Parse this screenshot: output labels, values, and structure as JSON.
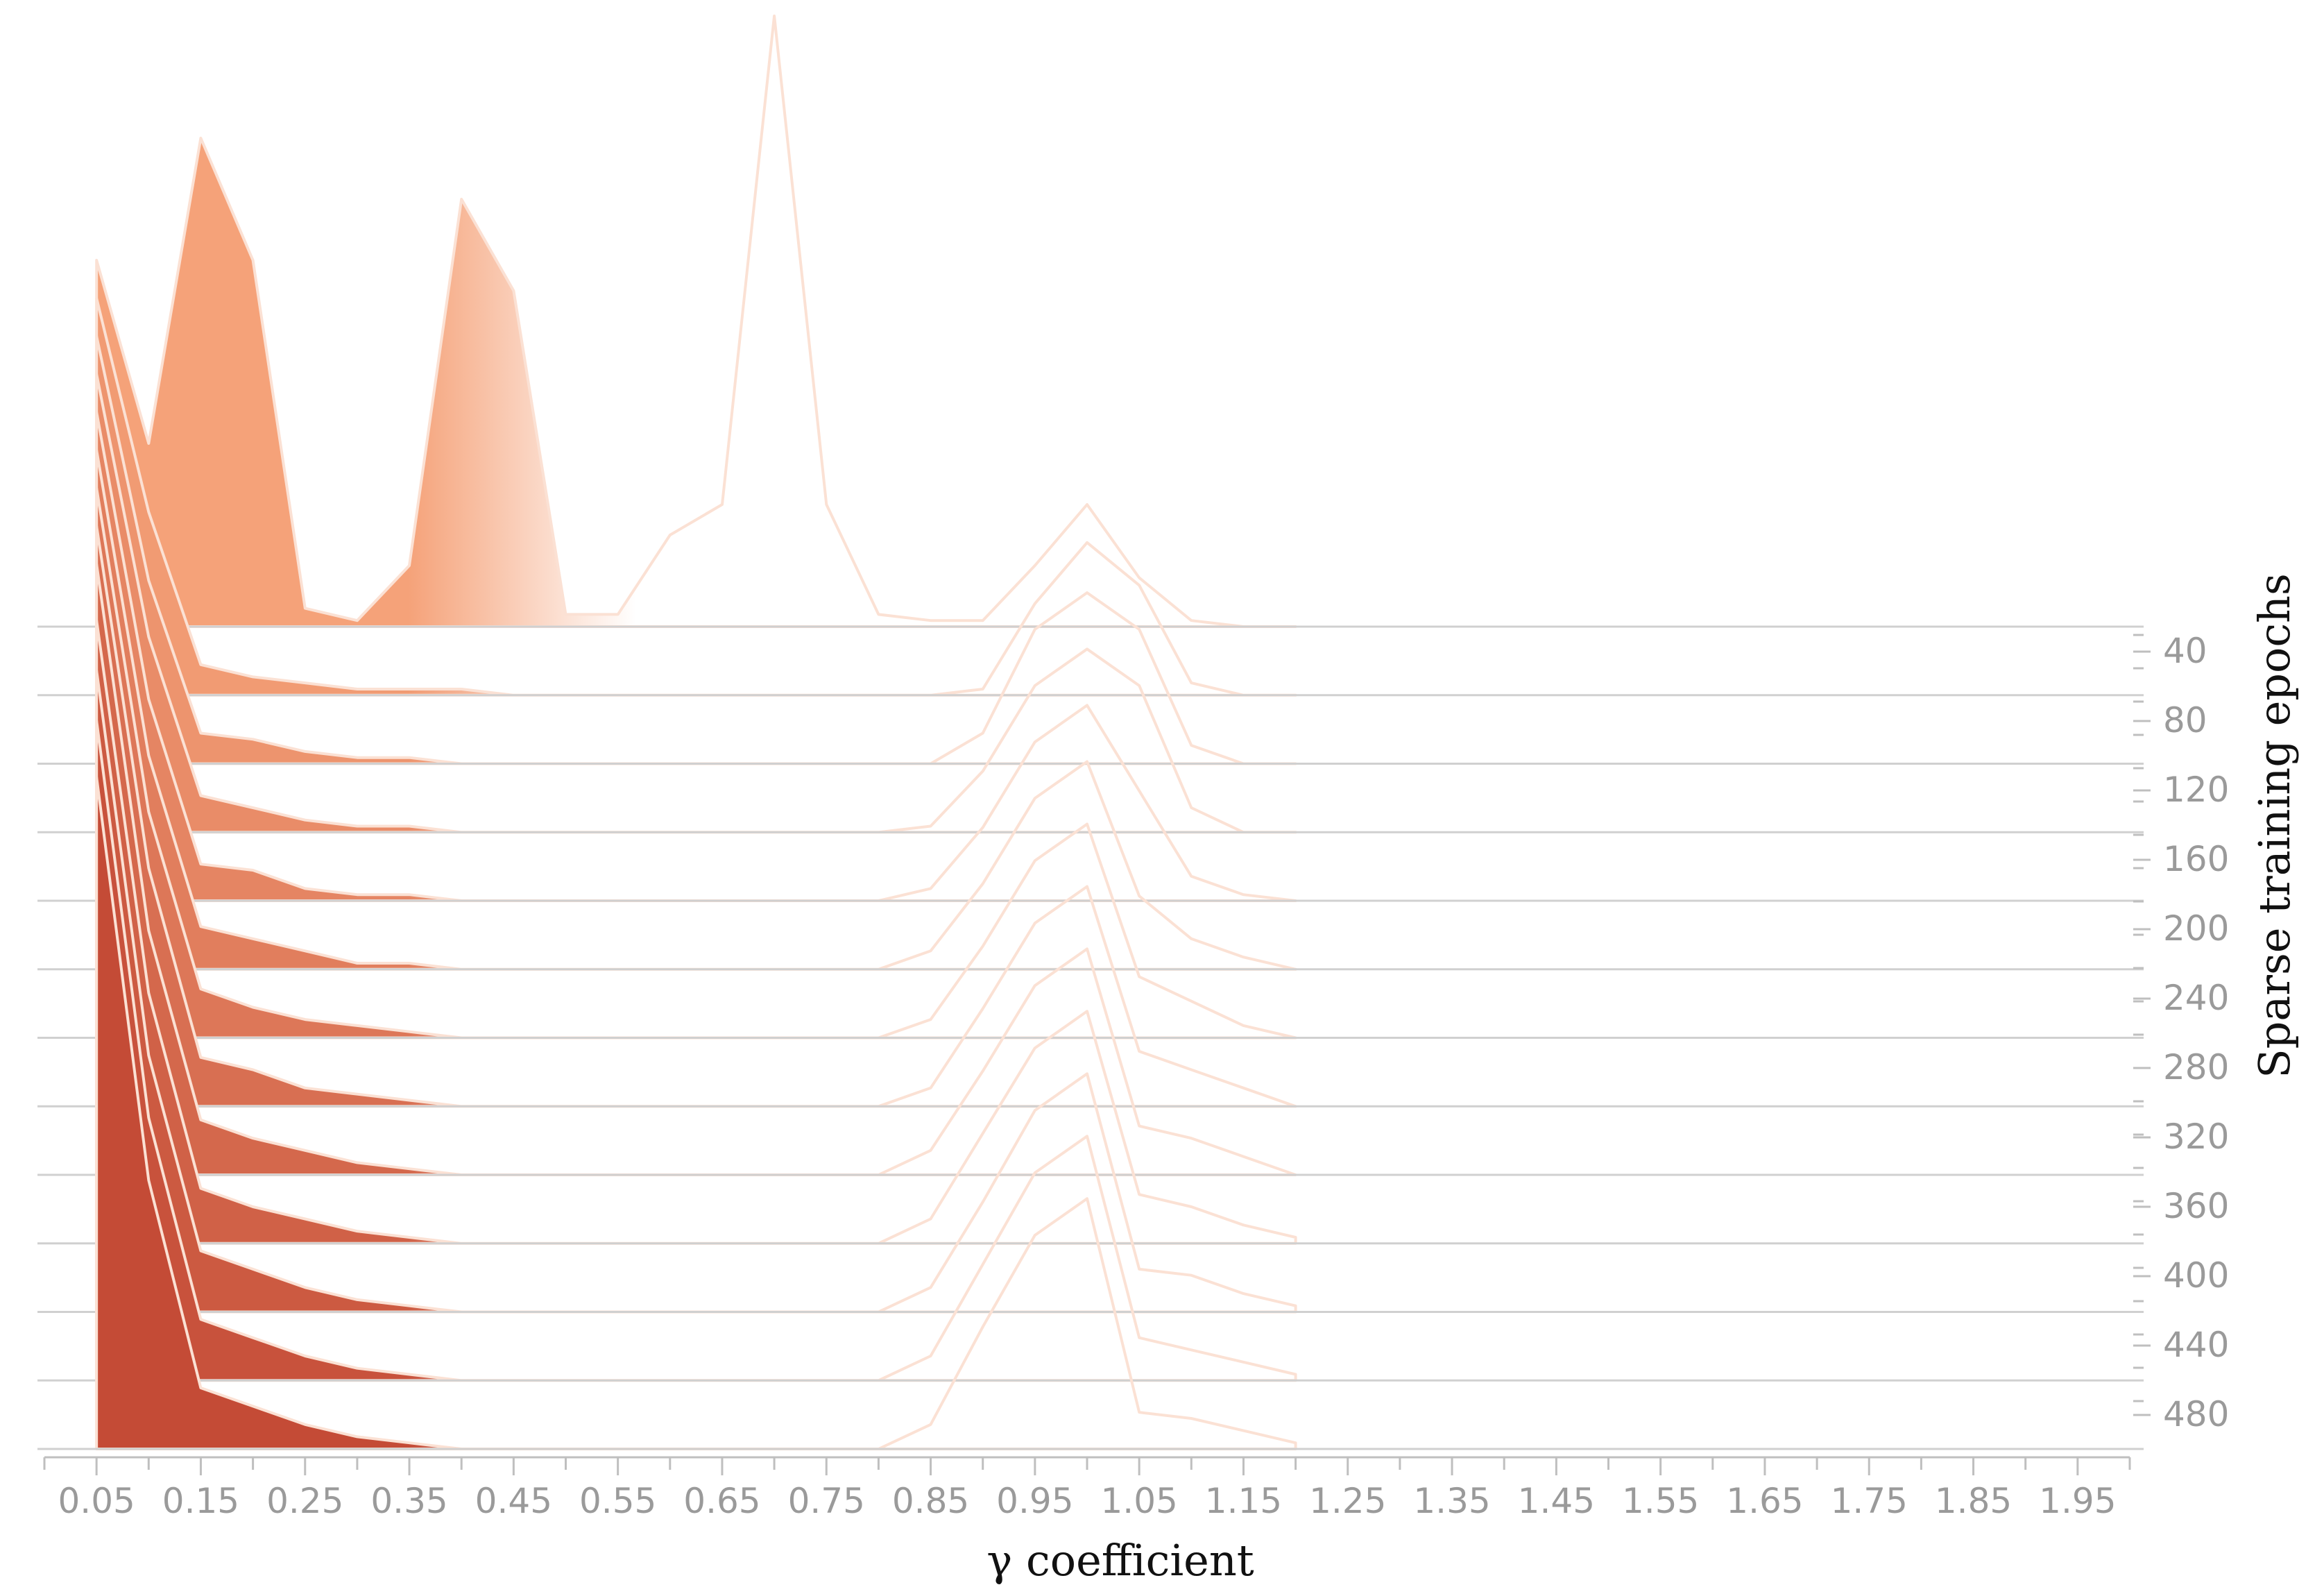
{
  "chart_data": {
    "type": "area",
    "subtype": "ridgeline-histogram",
    "title": "",
    "xlabel": "γ coefficient",
    "ylabel": "Sparse training epochs",
    "xlim": [
      0.0,
      2.0
    ],
    "x_tick_labels": [
      "0.05",
      "0.15",
      "0.25",
      "0.35",
      "0.45",
      "0.55",
      "0.65",
      "0.75",
      "0.85",
      "0.95",
      "1.05",
      "1.15",
      "1.25",
      "1.35",
      "1.45",
      "1.55",
      "1.65",
      "1.75",
      "1.85",
      "1.95"
    ],
    "y_tick_labels": [
      "40",
      "80",
      "120",
      "160",
      "200",
      "240",
      "280",
      "320",
      "360",
      "400",
      "440",
      "480"
    ],
    "x": [
      0.05,
      0.1,
      0.15,
      0.2,
      0.25,
      0.3,
      0.35,
      0.4,
      0.45,
      0.5,
      0.55,
      0.6,
      0.65,
      0.7,
      0.75,
      0.8,
      0.85,
      0.9,
      0.95,
      1.0,
      1.05,
      1.1,
      1.15,
      1.2
    ],
    "colors": {
      "early": "#f5a279",
      "late": "#c44b36"
    },
    "series": [
      {
        "epoch": 10,
        "values": [
          0.6,
          0.3,
          0.8,
          0.6,
          0.03,
          0.01,
          0.1,
          0.7,
          0.55,
          0.02,
          0.02,
          0.15,
          0.2,
          1.0,
          0.2,
          0.02,
          0.01,
          0.01,
          0.1,
          0.2,
          0.08,
          0.01,
          0.0,
          0.0
        ]
      },
      {
        "epoch": 40,
        "values": [
          0.65,
          0.3,
          0.05,
          0.03,
          0.02,
          0.01,
          0.01,
          0.01,
          0.0,
          0.0,
          0.0,
          0.0,
          0.0,
          0.0,
          0.0,
          0.0,
          0.0,
          0.01,
          0.15,
          0.25,
          0.18,
          0.02,
          0.0,
          0.0
        ]
      },
      {
        "epoch": 80,
        "values": [
          0.7,
          0.3,
          0.05,
          0.04,
          0.02,
          0.01,
          0.01,
          0.0,
          0.0,
          0.0,
          0.0,
          0.0,
          0.0,
          0.0,
          0.0,
          0.0,
          0.0,
          0.05,
          0.22,
          0.28,
          0.22,
          0.03,
          0.0,
          0.0
        ]
      },
      {
        "epoch": 120,
        "values": [
          0.75,
          0.32,
          0.06,
          0.04,
          0.02,
          0.01,
          0.01,
          0.0,
          0.0,
          0.0,
          0.0,
          0.0,
          0.0,
          0.0,
          0.0,
          0.0,
          0.01,
          0.1,
          0.24,
          0.3,
          0.24,
          0.04,
          0.0,
          0.0
        ]
      },
      {
        "epoch": 160,
        "values": [
          0.8,
          0.33,
          0.06,
          0.05,
          0.02,
          0.01,
          0.01,
          0.0,
          0.0,
          0.0,
          0.0,
          0.0,
          0.0,
          0.0,
          0.0,
          0.0,
          0.02,
          0.12,
          0.26,
          0.32,
          0.18,
          0.04,
          0.01,
          0.0
        ]
      },
      {
        "epoch": 200,
        "values": [
          0.85,
          0.35,
          0.07,
          0.05,
          0.03,
          0.01,
          0.01,
          0.0,
          0.0,
          0.0,
          0.0,
          0.0,
          0.0,
          0.0,
          0.0,
          0.0,
          0.03,
          0.14,
          0.28,
          0.34,
          0.12,
          0.05,
          0.02,
          0.0
        ]
      },
      {
        "epoch": 240,
        "values": [
          0.9,
          0.37,
          0.08,
          0.05,
          0.03,
          0.02,
          0.01,
          0.0,
          0.0,
          0.0,
          0.0,
          0.0,
          0.0,
          0.0,
          0.0,
          0.0,
          0.03,
          0.15,
          0.29,
          0.35,
          0.1,
          0.06,
          0.02,
          0.0
        ]
      },
      {
        "epoch": 280,
        "values": [
          0.95,
          0.39,
          0.08,
          0.06,
          0.03,
          0.02,
          0.01,
          0.0,
          0.0,
          0.0,
          0.0,
          0.0,
          0.0,
          0.0,
          0.0,
          0.0,
          0.03,
          0.16,
          0.3,
          0.36,
          0.09,
          0.06,
          0.03,
          0.0
        ]
      },
      {
        "epoch": 320,
        "values": [
          1.0,
          0.4,
          0.09,
          0.06,
          0.04,
          0.02,
          0.01,
          0.0,
          0.0,
          0.0,
          0.0,
          0.0,
          0.0,
          0.0,
          0.0,
          0.0,
          0.04,
          0.17,
          0.31,
          0.37,
          0.08,
          0.06,
          0.03,
          0.0
        ]
      },
      {
        "epoch": 360,
        "values": [
          1.02,
          0.41,
          0.09,
          0.06,
          0.04,
          0.02,
          0.01,
          0.0,
          0.0,
          0.0,
          0.0,
          0.0,
          0.0,
          0.0,
          0.0,
          0.0,
          0.04,
          0.18,
          0.32,
          0.38,
          0.08,
          0.06,
          0.03,
          0.01
        ]
      },
      {
        "epoch": 400,
        "values": [
          1.05,
          0.42,
          0.1,
          0.07,
          0.04,
          0.02,
          0.01,
          0.0,
          0.0,
          0.0,
          0.0,
          0.0,
          0.0,
          0.0,
          0.0,
          0.0,
          0.04,
          0.18,
          0.33,
          0.39,
          0.07,
          0.06,
          0.03,
          0.01
        ]
      },
      {
        "epoch": 440,
        "values": [
          1.08,
          0.43,
          0.1,
          0.07,
          0.04,
          0.02,
          0.01,
          0.0,
          0.0,
          0.0,
          0.0,
          0.0,
          0.0,
          0.0,
          0.0,
          0.0,
          0.04,
          0.19,
          0.34,
          0.4,
          0.07,
          0.05,
          0.03,
          0.01
        ]
      },
      {
        "epoch": 480,
        "values": [
          1.1,
          0.44,
          0.1,
          0.07,
          0.04,
          0.02,
          0.01,
          0.0,
          0.0,
          0.0,
          0.0,
          0.0,
          0.0,
          0.0,
          0.0,
          0.0,
          0.04,
          0.2,
          0.35,
          0.41,
          0.06,
          0.05,
          0.03,
          0.01
        ]
      }
    ]
  }
}
